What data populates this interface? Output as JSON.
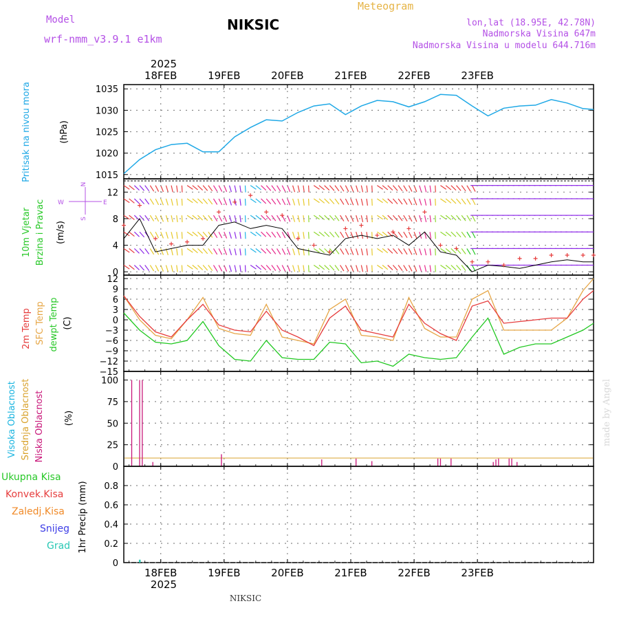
{
  "header": {
    "model_label": "Model",
    "model_name": "wrf-nmm_v3.9.1 e1km",
    "station": "NIKSIC",
    "product": "Meteogram",
    "lonlat": "lon,lat (18.95E, 42.78N)",
    "elevation": "Nadmorska Visina 647m",
    "model_elevation": "Nadmorska Visina u modelu 644.716m",
    "footer_station": "NIKSIC",
    "credit": "made by Angel"
  },
  "time_axis": {
    "year": "2025",
    "days": [
      "18FEB",
      "19FEB",
      "20FEB",
      "21FEB",
      "22FEB",
      "23FEB"
    ]
  },
  "colors": {
    "pressure": "#1ea8e6",
    "temp2m": "#e63c3c",
    "sfc": "#e6a646",
    "dewpt": "#20c820",
    "high_cloud": "#18b4e0",
    "mid_cloud": "#d9a22c",
    "low_cloud": "#c81478",
    "precip_total": "#28c828",
    "precip_conv": "#e63c3c",
    "precip_frz": "#f08a28",
    "precip_snow": "#3c3ce6",
    "precip_grad": "#28c8b4",
    "wind_label": "#28c828",
    "compass": "#b450e6"
  },
  "panels": {
    "pressure": {
      "ylabel": "Pritisak na nivou mora",
      "unit": "(hPa)",
      "ticks": [
        "1035",
        "1030",
        "1025",
        "1020",
        "1015"
      ]
    },
    "wind": {
      "ylabel1": "10m Vjetar",
      "ylabel2": "Brzina i Pravac",
      "unit": "(m/s)",
      "ticks": [
        "12",
        "8",
        "4",
        "0"
      ],
      "compass_n": "N",
      "compass_s": "S",
      "compass_e": "E",
      "compass_w": "W"
    },
    "temp": {
      "ylabel1": "2m Temp",
      "ylabel2": "SFC Temp",
      "ylabel3": "dewpt Temp",
      "unit": "(C)",
      "ticks": [
        "12",
        "9",
        "6",
        "3",
        "0",
        "−3",
        "−6",
        "−9",
        "−12",
        "−15"
      ]
    },
    "cloud": {
      "ylabel1": "Visoka Oblacnost",
      "ylabel2": "Srednja Oblacnost",
      "ylabel3": "Niska Oblacnost",
      "unit": "(%)",
      "ticks": [
        "100",
        "75",
        "50",
        "25",
        "0"
      ]
    },
    "precip": {
      "legend": [
        "Ukupna Kisa",
        "Konvek.Kisa",
        "Zaledj.Kisa",
        "Snijeg",
        "Grad"
      ],
      "ylabel": "1hr Precip (mm)",
      "ticks": [
        "0.8",
        "0.6",
        "0.4",
        "0.2",
        "0"
      ]
    }
  },
  "chart_data": [
    {
      "type": "line",
      "name": "Pritisak na nivou mora",
      "ylim": [
        1014,
        1036
      ],
      "x": [
        0,
        6,
        12,
        18,
        24,
        30,
        36,
        42,
        48,
        54,
        60,
        66,
        72,
        78,
        84,
        90,
        96,
        102,
        108,
        114,
        120,
        126,
        132,
        138,
        144,
        150,
        156,
        162,
        168,
        174,
        178
      ],
      "values": [
        1015.2,
        1018.5,
        1020.8,
        1022.0,
        1022.3,
        1020.3,
        1020.3,
        1023.8,
        1026.0,
        1027.8,
        1027.5,
        1029.5,
        1031.0,
        1031.5,
        1029.0,
        1031.0,
        1032.3,
        1032.0,
        1030.8,
        1032.0,
        1033.7,
        1033.5,
        1031.0,
        1028.7,
        1030.5,
        1031.0,
        1031.2,
        1032.5,
        1031.7,
        1030.4,
        1030.2
      ]
    },
    {
      "type": "line",
      "name": "10m Vjetar",
      "ylim": [
        -0.5,
        14
      ],
      "x": [
        0,
        6,
        12,
        18,
        24,
        30,
        36,
        42,
        48,
        54,
        60,
        66,
        72,
        78,
        84,
        90,
        96,
        102,
        108,
        114,
        120,
        126,
        132,
        138,
        144,
        150,
        156,
        162,
        168,
        174,
        178
      ],
      "values": [
        5.0,
        8.0,
        3.0,
        3.5,
        4.0,
        4.0,
        7.0,
        7.5,
        6.5,
        7.0,
        6.5,
        3.5,
        3.0,
        2.5,
        5.0,
        5.5,
        5.0,
        5.5,
        4.0,
        6.0,
        3.0,
        2.5,
        0.0,
        1.0,
        0.8,
        0.5,
        1.0,
        1.5,
        1.8,
        1.5,
        1.5
      ],
      "gust": [
        7.0,
        10.0,
        5.0,
        4.2,
        4.5,
        5.0,
        9.0,
        10.5,
        11.5,
        9.0,
        8.5,
        5.0,
        4.0,
        3.0,
        6.5,
        7.0,
        5.5,
        6.0,
        6.5,
        9.0,
        4.0,
        3.5,
        1.5,
        1.5,
        1.0,
        2.0,
        2.0,
        2.5,
        2.5,
        2.5,
        2.5
      ]
    },
    {
      "type": "line",
      "name": "Temperature",
      "ylim": [
        -15,
        13
      ],
      "x": [
        0,
        6,
        12,
        18,
        24,
        30,
        36,
        42,
        48,
        54,
        60,
        66,
        72,
        78,
        84,
        90,
        96,
        102,
        108,
        114,
        120,
        126,
        132,
        138,
        144,
        150,
        156,
        162,
        168,
        174,
        178
      ],
      "series": [
        {
          "name": "2m Temp",
          "values": [
            7.0,
            1.0,
            -3.5,
            -5.0,
            0.0,
            4.5,
            -1.5,
            -3.0,
            -3.5,
            2.5,
            -3.0,
            -5.0,
            -7.5,
            0.5,
            4.0,
            -3.0,
            -4.0,
            -5.0,
            4.5,
            -1.0,
            -4.0,
            -6.0,
            4.0,
            5.5,
            -1.0,
            -0.5,
            0.0,
            0.5,
            0.5,
            6.0,
            8.5
          ]
        },
        {
          "name": "SFC Temp",
          "values": [
            7.0,
            0.0,
            -4.5,
            -5.5,
            0.0,
            6.5,
            -2.5,
            -4.0,
            -4.5,
            4.5,
            -5.0,
            -6.0,
            -7.0,
            3.0,
            6.0,
            -4.5,
            -5.0,
            -6.0,
            6.5,
            -2.5,
            -5.0,
            -5.0,
            6.0,
            8.5,
            -3.0,
            -3.0,
            -3.0,
            -3.0,
            0.5,
            8.5,
            12.0
          ]
        },
        {
          "name": "dewpt Temp",
          "values": [
            2.0,
            -3.0,
            -6.5,
            -7.0,
            -6.0,
            -0.5,
            -7.5,
            -11.5,
            -12.0,
            -6.0,
            -11.0,
            -11.5,
            -11.5,
            -6.5,
            -7.0,
            -12.5,
            -12.0,
            -13.5,
            -10.0,
            -11.0,
            -11.5,
            -11.0,
            -5.0,
            0.5,
            -10.0,
            -8.0,
            -7.0,
            -7.0,
            -5.0,
            -3.0,
            -1.0
          ]
        }
      ]
    },
    {
      "type": "bar",
      "name": "Niska Oblacnost",
      "ylim": [
        0,
        110
      ],
      "x": [
        3,
        6,
        7,
        11,
        37,
        75,
        88,
        94,
        119,
        120,
        124,
        140,
        141,
        142,
        146,
        147,
        149
      ],
      "values": [
        100,
        100,
        100,
        5,
        14,
        8,
        9,
        6,
        9,
        9,
        9,
        5,
        8,
        9,
        9,
        9,
        5
      ]
    },
    {
      "type": "bar",
      "name": "1hr Precip",
      "ylim": [
        0,
        1.0
      ],
      "x": [
        6
      ],
      "values": [
        0.03
      ]
    }
  ]
}
